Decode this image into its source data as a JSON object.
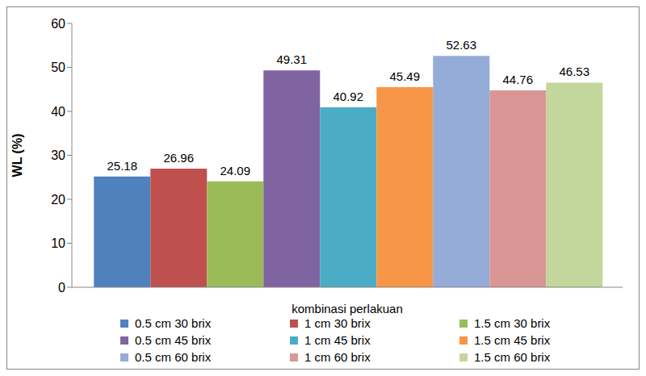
{
  "chart_data": {
    "type": "bar",
    "x_label": "kombinasi perlakuan",
    "y_label": "WL (%)",
    "categories": [
      null
    ],
    "series": [
      {
        "name": "0.5 cm 30 brix",
        "color": "#4f81bd",
        "values": [
          25.18
        ]
      },
      {
        "name": "1 cm 30 brix",
        "color": "#c0504d",
        "values": [
          26.96
        ]
      },
      {
        "name": "1.5 cm 30 brix",
        "color": "#9bbb59",
        "values": [
          24.09
        ]
      },
      {
        "name": "0.5 cm 45 brix",
        "color": "#8064a2",
        "values": [
          49.31
        ]
      },
      {
        "name": "1 cm 45 brix",
        "color": "#4bacc6",
        "values": [
          40.92
        ]
      },
      {
        "name": "1.5 cm 45 brix",
        "color": "#f79646",
        "values": [
          45.49
        ]
      },
      {
        "name": "0.5 cm 60 brix",
        "color": "#95abd8",
        "values": [
          52.63
        ]
      },
      {
        "name": "1 cm 60 brix",
        "color": "#d99694",
        "values": [
          44.76
        ]
      },
      {
        "name": "1.5 cm 60 brix",
        "color": "#c3d69b",
        "values": [
          46.53
        ]
      }
    ],
    "ylim": [
      0,
      60
    ],
    "yticks": [
      0,
      10,
      20,
      30,
      40,
      50,
      60
    ],
    "grid": false,
    "legend": "bottom",
    "data_labels": true
  }
}
